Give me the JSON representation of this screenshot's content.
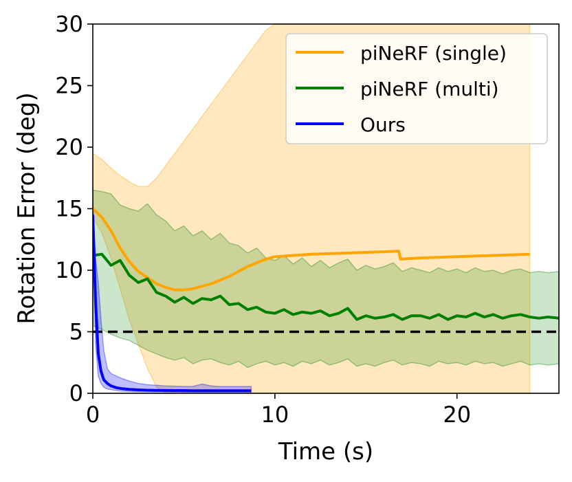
{
  "chart_data": {
    "type": "line",
    "title": "",
    "xlabel": "Time (s)",
    "ylabel": "Rotation Error (deg)",
    "xlim": [
      0,
      25.6
    ],
    "ylim": [
      0,
      30
    ],
    "x_ticks": [
      0,
      10,
      20
    ],
    "x_tick_labels": [
      "0",
      "10",
      "20"
    ],
    "y_ticks": [
      0,
      5,
      10,
      15,
      20,
      25,
      30
    ],
    "y_tick_labels": [
      "0",
      "5",
      "10",
      "15",
      "20",
      "25",
      "30"
    ],
    "grid": false,
    "legend_position": "top-right",
    "threshold": {
      "value": 5,
      "style": "dashed",
      "color": "#000000"
    },
    "series": [
      {
        "name": "piNeRF (single)",
        "color": "#FFA500",
        "x": [
          0,
          0.5,
          1,
          1.5,
          2,
          2.5,
          3,
          3.5,
          4,
          4.5,
          5,
          5.5,
          6,
          6.5,
          7,
          7.5,
          8,
          8.5,
          9,
          9.5,
          10,
          11,
          12,
          13,
          14,
          15,
          16,
          16.8,
          16.9,
          18,
          19,
          20,
          21,
          22,
          23,
          24
        ],
        "y": [
          15.0,
          14.3,
          13.2,
          11.8,
          10.7,
          9.9,
          9.4,
          8.9,
          8.6,
          8.4,
          8.4,
          8.5,
          8.7,
          8.9,
          9.2,
          9.5,
          9.9,
          10.3,
          10.6,
          10.9,
          11.1,
          11.2,
          11.3,
          11.35,
          11.4,
          11.45,
          11.5,
          11.55,
          10.9,
          11.0,
          11.05,
          11.1,
          11.15,
          11.2,
          11.25,
          11.3
        ],
        "lower": [
          14.3,
          13.0,
          11.0,
          8.5,
          6.0,
          4.0,
          2.0,
          0.5,
          0,
          0,
          0,
          0,
          0,
          0,
          0,
          0,
          0,
          0,
          0,
          0,
          0,
          0,
          0,
          0,
          0,
          0,
          0,
          0,
          0,
          0,
          0,
          0,
          0,
          0,
          0,
          0
        ],
        "upper": [
          19.5,
          19.0,
          18.3,
          17.7,
          17.2,
          16.8,
          16.8,
          17.5,
          18.5,
          19.5,
          20.5,
          21.5,
          22.5,
          23.5,
          24.5,
          25.5,
          26.5,
          27.5,
          28.5,
          29.5,
          30,
          30,
          30,
          30,
          30,
          30,
          30,
          30,
          30,
          30,
          30,
          30,
          30,
          30,
          30,
          30
        ]
      },
      {
        "name": "piNeRF (multi)",
        "color": "#008000",
        "x": [
          0,
          0.5,
          1,
          1.5,
          2,
          2.5,
          3,
          3.5,
          4,
          4.5,
          5,
          5.5,
          6,
          6.5,
          7,
          7.5,
          8,
          8.5,
          9,
          9.5,
          10,
          10.5,
          11,
          11.5,
          12,
          12.5,
          13,
          13.5,
          14,
          14.5,
          15,
          15.5,
          16,
          16.5,
          17,
          17.5,
          18,
          18.5,
          19,
          19.5,
          20,
          20.5,
          21,
          21.5,
          22,
          22.5,
          23,
          23.5,
          24,
          24.5,
          25,
          25.6
        ],
        "y": [
          11.2,
          11.3,
          10.4,
          10.8,
          9.6,
          9.0,
          9.3,
          8.2,
          7.9,
          7.4,
          7.8,
          7.3,
          7.7,
          7.6,
          7.9,
          7.2,
          7.3,
          6.8,
          7.0,
          6.6,
          6.5,
          6.8,
          6.4,
          6.6,
          6.5,
          6.7,
          6.3,
          6.5,
          6.9,
          6.0,
          6.3,
          6.1,
          6.2,
          6.4,
          6.0,
          6.3,
          6.3,
          6.1,
          6.4,
          6.0,
          6.3,
          6.2,
          6.5,
          6.2,
          6.4,
          6.1,
          6.3,
          6.4,
          6.2,
          6.1,
          6.2,
          6.1
        ],
        "lower": [
          5.5,
          5.2,
          4.8,
          4.5,
          4.3,
          3.9,
          3.5,
          3.2,
          2.9,
          2.7,
          2.9,
          2.4,
          2.7,
          2.8,
          2.5,
          2.3,
          2.6,
          2.1,
          2.4,
          2.6,
          2.3,
          2.5,
          2.2,
          2.6,
          2.4,
          2.7,
          2.3,
          2.5,
          2.8,
          2.2,
          2.4,
          2.2,
          2.5,
          2.7,
          2.3,
          2.5,
          2.4,
          2.2,
          2.6,
          2.4,
          2.5,
          2.3,
          2.6,
          2.4,
          2.5,
          2.2,
          2.4,
          2.6,
          2.3,
          2.4,
          2.3,
          2.4
        ],
        "upper": [
          16.5,
          16.4,
          16.2,
          15.3,
          15.0,
          14.8,
          15.4,
          14.5,
          14.0,
          13.2,
          13.6,
          12.8,
          13.2,
          12.5,
          13.0,
          12.2,
          12.0,
          11.4,
          11.8,
          11.0,
          10.8,
          11.2,
          10.5,
          11.0,
          10.3,
          10.8,
          10.2,
          10.6,
          10.9,
          10.0,
          10.4,
          10.1,
          10.3,
          10.6,
          9.9,
          10.2,
          10.0,
          9.8,
          10.2,
          9.9,
          10.1,
          9.8,
          10.2,
          9.9,
          10.0,
          9.7,
          10.0,
          10.1,
          9.8,
          9.9,
          9.8,
          9.9
        ]
      },
      {
        "name": "Ours",
        "color": "#0000FF",
        "x": [
          0,
          0.15,
          0.3,
          0.45,
          0.6,
          0.8,
          1.0,
          1.3,
          1.6,
          2.0,
          2.5,
          3.0,
          3.5,
          4.0,
          4.5,
          5.0,
          5.5,
          6.0,
          6.5,
          7.0,
          7.5,
          8.0,
          8.7
        ],
        "y": [
          14.5,
          7.5,
          3.2,
          1.8,
          1.1,
          0.8,
          0.6,
          0.45,
          0.38,
          0.32,
          0.28,
          0.25,
          0.24,
          0.23,
          0.22,
          0.22,
          0.21,
          0.21,
          0.21,
          0.21,
          0.21,
          0.21,
          0.21
        ],
        "lower": [
          14.0,
          4.0,
          1.4,
          0.8,
          0.5,
          0.35,
          0.3,
          0.22,
          0.18,
          0.15,
          0.13,
          0.12,
          0.11,
          0.11,
          0.1,
          0.1,
          0.1,
          0.1,
          0.1,
          0.1,
          0.1,
          0.1,
          0.1
        ],
        "upper": [
          15.5,
          11.0,
          9.0,
          6.0,
          3.5,
          2.0,
          1.6,
          1.4,
          1.2,
          1.0,
          0.8,
          0.7,
          0.65,
          0.6,
          0.58,
          0.56,
          0.56,
          0.75,
          0.6,
          0.55,
          0.55,
          0.55,
          0.55
        ]
      }
    ]
  }
}
